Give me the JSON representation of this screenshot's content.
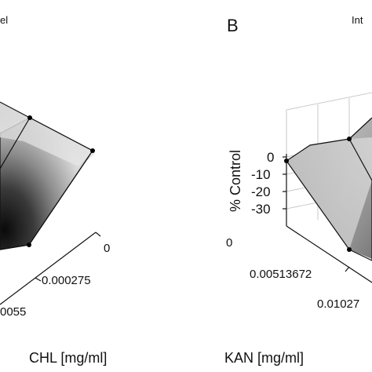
{
  "panel_a": {
    "title_fragment": "el"
  },
  "panel_b": {
    "letter": "B",
    "title_fragment": "Int"
  },
  "chart_data": [
    {
      "type": "surface",
      "panel": "A",
      "axis_tick_labels": [
        "0",
        "0.000275",
        "0055"
      ],
      "xlabel": "CHL [mg/ml]",
      "colormap": "grayscale",
      "grid": true
    },
    {
      "type": "surface",
      "panel": "B",
      "z_tick_labels": [
        "0",
        "-10",
        "-20",
        "-30"
      ],
      "zlabel": "% Control",
      "zlim": [
        -35,
        0
      ],
      "axis_tick_labels": [
        "0",
        "0.00513672",
        "0.01027"
      ],
      "xlabel": "KAN [mg/ml]",
      "colormap": "grayscale",
      "grid": true
    }
  ]
}
